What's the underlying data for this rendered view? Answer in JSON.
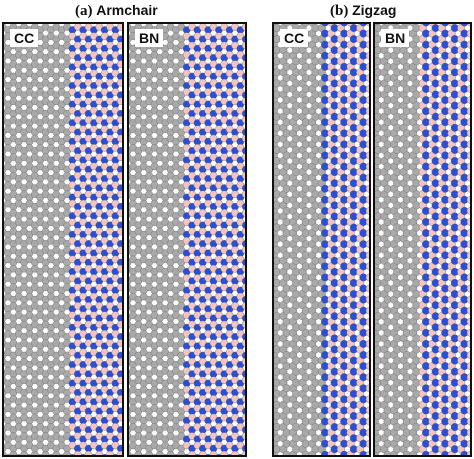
{
  "figure": {
    "panel_a": {
      "letter": "(a)",
      "title": "Armchair"
    },
    "panel_b": {
      "letter": "(b)",
      "title": "Zigzag"
    },
    "subpanels": [
      {
        "label": "CC"
      },
      {
        "label": "BN"
      },
      {
        "label": "CC"
      },
      {
        "label": "BN"
      }
    ]
  },
  "colors": {
    "carbon": "#a9a9a9",
    "boron": "#f2c4c4",
    "nitrogen": "#2a4fd6",
    "bond": "#555555",
    "frame": "#111111"
  }
}
